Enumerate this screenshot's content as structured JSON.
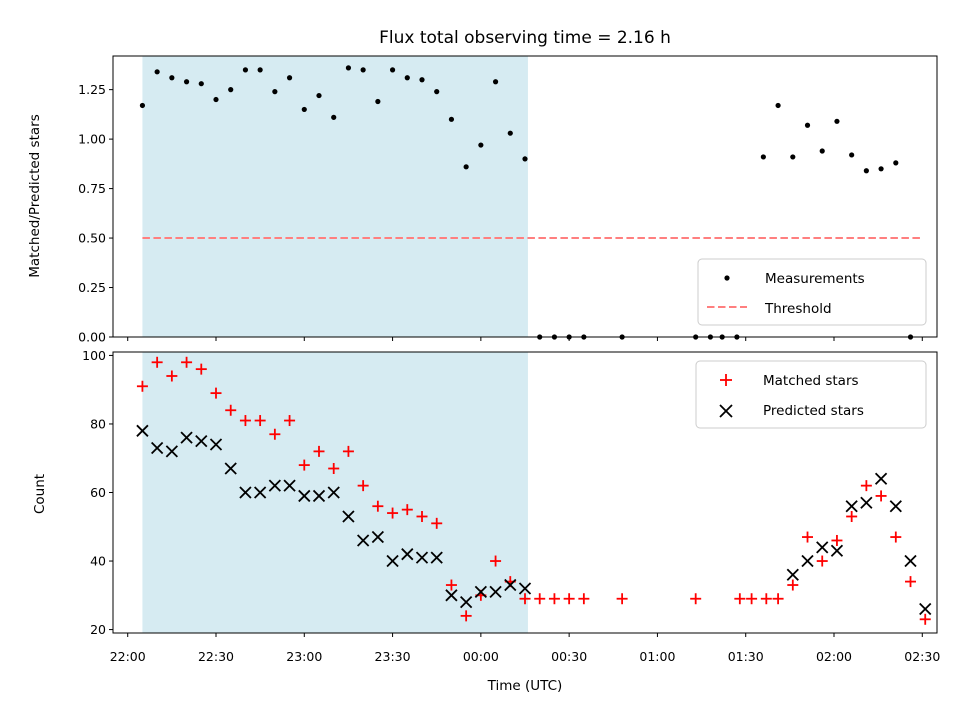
{
  "chart_data": [
    {
      "type": "scatter",
      "title": "Flux total observing time = 2.16 h",
      "xlabel": "",
      "ylabel": "Matched/Predicted stars",
      "xlim_minutes": [
        1315,
        1595
      ],
      "ylim": [
        0,
        1.42
      ],
      "yticks": [
        0.0,
        0.25,
        0.5,
        0.75,
        1.0,
        1.25
      ],
      "ytick_labels": [
        "0.00",
        "0.25",
        "0.50",
        "0.75",
        "1.00",
        "1.25"
      ],
      "shaded_span_minutes": [
        1325,
        1456
      ],
      "colors": {
        "measurements": "#000000",
        "threshold": "#ff7f7f",
        "span": "#add8e6"
      },
      "legend": {
        "position": "lower-right",
        "entries": [
          "Measurements",
          "Threshold"
        ]
      },
      "threshold": {
        "name": "Threshold",
        "y": 0.5,
        "x_range_minutes": [
          1325,
          1590
        ]
      },
      "series": [
        {
          "name": "Measurements",
          "x_minutes": [
            1325,
            1330,
            1335,
            1340,
            1345,
            1350,
            1355,
            1360,
            1365,
            1370,
            1375,
            1380,
            1385,
            1390,
            1395,
            1400,
            1405,
            1410,
            1415,
            1420,
            1425,
            1430,
            1435,
            1440,
            1445,
            1450,
            1455,
            1460,
            1465,
            1470,
            1475,
            1488,
            1513,
            1518,
            1522,
            1527,
            1536,
            1541,
            1546,
            1551,
            1556,
            1561,
            1566,
            1571,
            1576,
            1581,
            1586
          ],
          "y": [
            1.17,
            1.34,
            1.31,
            1.29,
            1.28,
            1.2,
            1.25,
            1.35,
            1.35,
            1.24,
            1.31,
            1.15,
            1.22,
            1.11,
            1.36,
            1.35,
            1.19,
            1.35,
            1.31,
            1.3,
            1.24,
            1.1,
            0.86,
            0.97,
            1.29,
            1.03,
            0.9,
            0.0,
            0.0,
            0.0,
            0.0,
            0.0,
            0.0,
            0.0,
            0.0,
            0.0,
            0.91,
            1.17,
            0.91,
            1.07,
            0.94,
            1.09,
            0.92,
            0.84,
            0.85,
            0.88,
            0.0
          ]
        }
      ]
    },
    {
      "type": "scatter",
      "title": "",
      "xlabel": "Time (UTC)",
      "ylabel": "Count",
      "xlim_minutes": [
        1315,
        1595
      ],
      "ylim": [
        19,
        101
      ],
      "yticks": [
        20,
        40,
        60,
        80,
        100
      ],
      "ytick_labels": [
        "20",
        "40",
        "60",
        "80",
        "100"
      ],
      "xticks_minutes": [
        1320,
        1350,
        1380,
        1410,
        1440,
        1470,
        1500,
        1530,
        1560,
        1590
      ],
      "xtick_labels": [
        "22:00",
        "22:30",
        "23:00",
        "23:30",
        "00:00",
        "00:30",
        "01:00",
        "01:30",
        "02:00",
        "02:30"
      ],
      "shaded_span_minutes": [
        1325,
        1456
      ],
      "colors": {
        "matched": "#ff0000",
        "predicted": "#000000",
        "span": "#add8e6"
      },
      "legend": {
        "position": "top-right",
        "entries": [
          "Matched stars",
          "Predicted stars"
        ]
      },
      "series": [
        {
          "name": "Matched stars",
          "marker": "plus",
          "x_minutes": [
            1325,
            1330,
            1335,
            1340,
            1345,
            1350,
            1355,
            1360,
            1365,
            1370,
            1375,
            1380,
            1385,
            1390,
            1395,
            1400,
            1405,
            1410,
            1415,
            1420,
            1425,
            1430,
            1435,
            1440,
            1445,
            1450,
            1455,
            1460,
            1465,
            1470,
            1475,
            1488,
            1513,
            1528,
            1532,
            1537,
            1541,
            1546,
            1551,
            1556,
            1561,
            1566,
            1571,
            1576,
            1581,
            1586,
            1591
          ],
          "y": [
            91,
            98,
            94,
            98,
            96,
            89,
            84,
            81,
            81,
            77,
            81,
            68,
            72,
            67,
            72,
            62,
            56,
            54,
            55,
            53,
            51,
            33,
            24,
            30,
            40,
            34,
            29,
            29,
            29,
            29,
            29,
            29,
            29,
            29,
            29,
            29,
            29,
            33,
            47,
            40,
            46,
            53,
            62,
            59,
            47,
            34,
            23
          ]
        },
        {
          "name": "Predicted stars",
          "marker": "x",
          "x_minutes": [
            1325,
            1330,
            1335,
            1340,
            1345,
            1350,
            1355,
            1360,
            1365,
            1370,
            1375,
            1380,
            1385,
            1390,
            1395,
            1400,
            1405,
            1410,
            1415,
            1420,
            1425,
            1430,
            1435,
            1440,
            1445,
            1450,
            1455,
            1546,
            1551,
            1556,
            1561,
            1566,
            1571,
            1576,
            1581,
            1586,
            1591
          ],
          "y": [
            78,
            73,
            72,
            76,
            75,
            74,
            67,
            60,
            60,
            62,
            62,
            59,
            59,
            60,
            53,
            46,
            47,
            40,
            42,
            41,
            41,
            30,
            28,
            31,
            31,
            33,
            32,
            36,
            40,
            44,
            43,
            56,
            57,
            64,
            56,
            40,
            26
          ]
        }
      ]
    }
  ]
}
